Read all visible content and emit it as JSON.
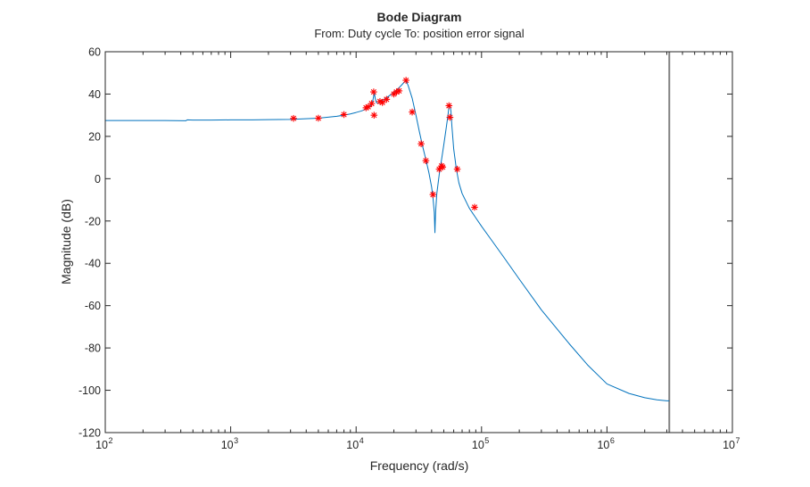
{
  "chart_data": {
    "type": "line",
    "title": "Bode Diagram",
    "subtitle": "From: Duty cycle  To: position error signal",
    "xlabel": "Frequency (rad/s)",
    "ylabel": "Magnitude (dB)",
    "xscale": "log",
    "xlim": [
      100,
      10000000
    ],
    "ylim": [
      -120,
      60
    ],
    "yticks": [
      60,
      40,
      20,
      0,
      -20,
      -40,
      -60,
      -80,
      -100,
      -120
    ],
    "xtick_exponents": [
      2,
      3,
      4,
      5,
      6,
      7
    ],
    "xtick_base": "10",
    "grid": false,
    "nyquist_line_x": 3140000,
    "line_color": "#0072BD",
    "marker_color": "#FF0000",
    "nyquist_line_color": "#808080",
    "series": [
      {
        "type": "line",
        "x": [
          100,
          150,
          200,
          300,
          440,
          450,
          500,
          700,
          1000,
          1500,
          2000,
          3000,
          5000,
          7000,
          8000,
          9000,
          10000,
          11000,
          12000,
          13000,
          13500,
          13800,
          14000,
          14200,
          14500,
          15000,
          16000,
          17000,
          18000,
          19000,
          20000,
          21000,
          22000,
          23000,
          24000,
          25000,
          26000,
          28000,
          30000,
          32000,
          34000,
          36000,
          38000,
          40000,
          41000,
          42000,
          42500,
          43000,
          44000,
          46000,
          48000,
          50000,
          52000,
          54000,
          55000,
          56000,
          57000,
          58000,
          60000,
          63000,
          66000,
          70000,
          80000,
          90000,
          100000,
          120000,
          150000,
          200000,
          300000,
          500000,
          700000,
          1000000,
          1500000,
          2000000,
          2500000,
          3000000,
          3140000
        ],
        "y": [
          27.5,
          27.5,
          27.5,
          27.5,
          27.4,
          27.8,
          27.7,
          27.7,
          27.8,
          27.8,
          27.9,
          28.0,
          28.6,
          29.5,
          30.0,
          30.6,
          31.3,
          32.0,
          32.9,
          34.2,
          36.0,
          39.0,
          40.2,
          38.0,
          36.0,
          35.5,
          36.8,
          37.8,
          38.8,
          39.8,
          40.8,
          41.8,
          43.0,
          44.2,
          45.4,
          46.3,
          44.0,
          38.0,
          30.0,
          22.0,
          15.0,
          9.0,
          3.0,
          -4.0,
          -9.0,
          -16.0,
          -25.5,
          -16.0,
          -7.0,
          2.0,
          9.0,
          16.0,
          23.0,
          30.0,
          34.0,
          35.0,
          32.0,
          25.0,
          14.0,
          4.5,
          -2.0,
          -7.0,
          -14.0,
          -18.5,
          -22.5,
          -29.0,
          -37.0,
          -47.5,
          -62.0,
          -78.0,
          -88.0,
          -97.0,
          -101.5,
          -103.5,
          -104.5,
          -105.0,
          -105.0
        ]
      },
      {
        "type": "scatter",
        "marker": "*",
        "x": [
          3170,
          5000,
          8000,
          12000,
          12500,
          13300,
          13800,
          13900,
          15500,
          16200,
          17500,
          20000,
          21000,
          22000,
          25000,
          28000,
          33000,
          36000,
          41000,
          46000,
          48000,
          49000,
          55000,
          56000,
          64000,
          88000
        ],
        "y": [
          28.5,
          28.6,
          30.3,
          33.5,
          34.0,
          35.5,
          41.0,
          30.0,
          36.5,
          36.0,
          37.5,
          40.0,
          41.0,
          41.5,
          46.5,
          31.5,
          16.5,
          8.5,
          -7.5,
          4.5,
          6.0,
          5.5,
          34.5,
          29.0,
          4.5,
          -13.5
        ]
      }
    ]
  }
}
